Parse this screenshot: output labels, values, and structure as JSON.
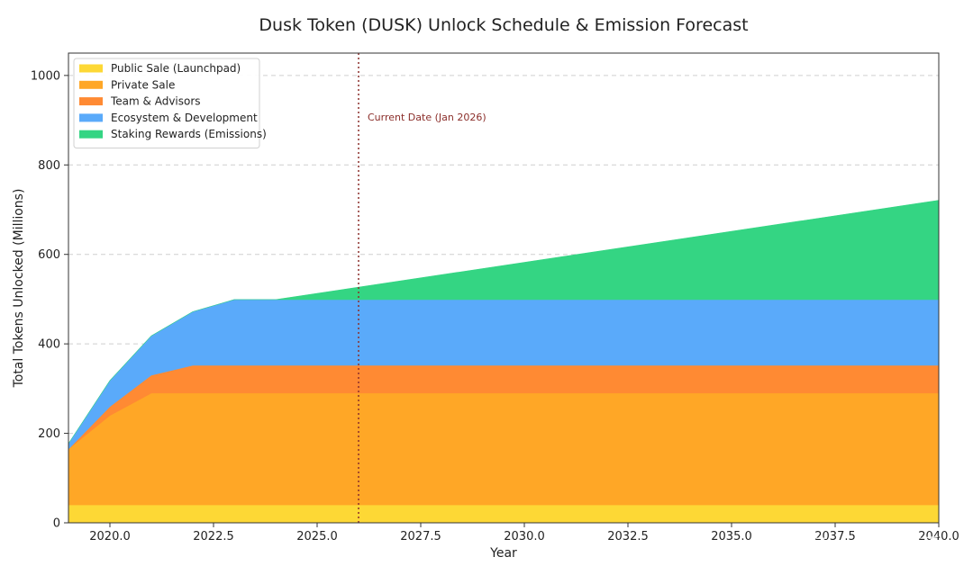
{
  "chart_data": {
    "type": "area",
    "stacked": true,
    "title": "Dusk Token (DUSK) Unlock Schedule & Emission Forecast",
    "xlabel": "Year",
    "ylabel": "Total Tokens Unlocked (Millions)",
    "xlim": [
      2019,
      2040
    ],
    "ylim": [
      0,
      1050
    ],
    "xticks": [
      2020.0,
      2022.5,
      2025.0,
      2027.5,
      2030.0,
      2032.5,
      2035.0,
      2037.5,
      2040.0
    ],
    "xtick_labels": [
      "2020.0",
      "2022.5",
      "2025.0",
      "2027.5",
      "2030.0",
      "2032.5",
      "2035.0",
      "2037.5",
      "2040.0"
    ],
    "yticks": [
      0,
      200,
      400,
      600,
      800,
      1000
    ],
    "ytick_labels": [
      "0",
      "200",
      "400",
      "600",
      "800",
      "1000"
    ],
    "grid": "y-dashed",
    "legend_position": "top-left",
    "x": [
      2019,
      2020,
      2021,
      2022,
      2023,
      2024,
      2040
    ],
    "series": [
      {
        "name": "Public Sale (Launchpad)",
        "color": "#FDD835",
        "values": [
          40,
          40,
          40,
          40,
          40,
          40,
          40
        ]
      },
      {
        "name": "Private Sale",
        "color": "#FFA726",
        "values": [
          125,
          200,
          250,
          250,
          250,
          250,
          250
        ]
      },
      {
        "name": "Team & Advisors",
        "color": "#FF8A33",
        "values": [
          0,
          20,
          40,
          62,
          62,
          62,
          62
        ]
      },
      {
        "name": "Ecosystem & Development",
        "color": "#5AAAFA",
        "values": [
          12,
          58,
          88,
          120,
          147,
          147,
          147
        ]
      },
      {
        "name": "Staking Rewards (Emissions)",
        "color": "#34D583",
        "values": [
          0,
          0,
          0,
          0,
          0,
          0,
          222
        ]
      }
    ],
    "annotations": [
      {
        "text": "Current Date (Jan 2026)",
        "x": 2026.0,
        "style": "vertical-dotted-line",
        "color": "#8B2E2A"
      }
    ]
  },
  "watermark": {
    "prefix": "@",
    "text": "Tana 14 比特币"
  }
}
